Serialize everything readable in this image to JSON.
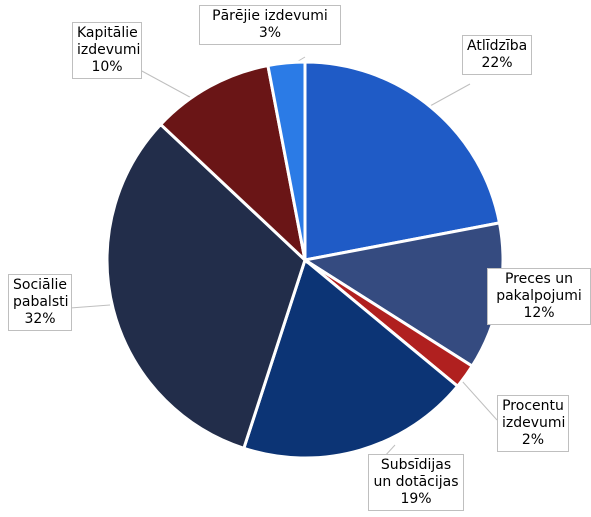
{
  "chart_data": {
    "type": "pie",
    "categories": [
      "Atlīdzība",
      "Preces un pakalpojumi",
      "Procentu izdevumi",
      "Subsīdijas un dotācijas",
      "Sociālie pabalsti",
      "Kapitālie izdevumi",
      "Pārējie izdevumi"
    ],
    "values": [
      22,
      12,
      2,
      19,
      32,
      10,
      3
    ],
    "value_labels": [
      "22%",
      "12%",
      "2%",
      "19%",
      "32%",
      "10%",
      "3%"
    ],
    "colors": [
      "#1f5bc6",
      "#354b80",
      "#b0201f",
      "#0c3475",
      "#222d4a",
      "#6a1516",
      "#2b7be6"
    ]
  }
}
